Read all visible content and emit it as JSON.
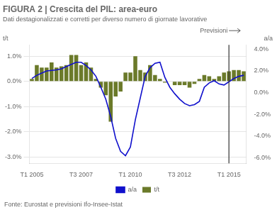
{
  "chart_data": {
    "type": "bar",
    "title": "FIGURA 2 | Crescita del PIL: area-euro",
    "subtitle": "Dati destagionalizzati e corretti per diverso numero di giornate lavorative",
    "source": "Fonte: Eurostat e previsioni Ifo-Insee-Istat",
    "y_label": "t/t",
    "y2_label": "a/a",
    "categories": [
      "T1 2005",
      null,
      null,
      null,
      null,
      null,
      null,
      null,
      null,
      null,
      "T3 2007",
      null,
      null,
      null,
      null,
      null,
      null,
      null,
      null,
      null,
      "T1 2010",
      null,
      null,
      null,
      null,
      null,
      null,
      null,
      null,
      null,
      "T3 2012",
      null,
      null,
      null,
      null,
      null,
      null,
      null,
      null,
      null,
      "T1 2015",
      null,
      null,
      null
    ],
    "series": [
      {
        "name": "t/t",
        "type": "bar",
        "color": "#6b7a2a",
        "values": [
          0.1,
          0.65,
          0.55,
          0.55,
          0.75,
          0.55,
          0.6,
          0.65,
          1.05,
          1.05,
          0.65,
          0.75,
          0.55,
          0.1,
          -0.25,
          -0.55,
          -1.6,
          -0.6,
          -0.4,
          0.35,
          0.35,
          1.0,
          0.45,
          0.35,
          0.65,
          0.25,
          0.1,
          -0.05,
          0.0,
          -0.15,
          -0.15,
          -0.15,
          -0.25,
          -0.1,
          0.1,
          0.25,
          0.2,
          0.1,
          0.2,
          0.35,
          0.4,
          0.45,
          0.45,
          0.4
        ]
      },
      {
        "name": "a/a",
        "type": "line",
        "axis": "y2",
        "color": "#1010cc",
        "values": [
          1.3,
          1.6,
          1.8,
          2.0,
          2.05,
          2.1,
          2.2,
          2.4,
          2.6,
          2.8,
          2.8,
          2.5,
          2.1,
          1.5,
          0.5,
          -0.6,
          -2.2,
          -4.2,
          -5.4,
          -5.8,
          -5.0,
          -2.5,
          -0.5,
          1.5,
          2.3,
          2.7,
          2.8,
          1.4,
          0.5,
          -0.1,
          -0.6,
          -1.0,
          -1.2,
          -1.1,
          -0.8,
          0.5,
          0.9,
          1.1,
          0.8,
          0.7,
          1.0,
          1.3,
          1.5,
          1.6
        ]
      }
    ],
    "ylim": [
      -3.25,
      1.45
    ],
    "yticks": [
      {
        "value": -3.0,
        "label": "-3.0%"
      },
      {
        "value": -2.0,
        "label": "-2.0%"
      },
      {
        "value": -1.0,
        "label": "-1.0%"
      },
      {
        "value": 0.0,
        "label": "0.0%"
      },
      {
        "value": 1.0,
        "label": "1.0%"
      }
    ],
    "y2lim": [
      -6.5,
      4.4
    ],
    "y2ticks": [
      {
        "value": -6.0,
        "label": "-6.0%"
      },
      {
        "value": -4.0,
        "label": "-4.0%"
      },
      {
        "value": -2.0,
        "label": "-2.0%"
      },
      {
        "value": 0.0,
        "label": "0.0%"
      },
      {
        "value": 2.0,
        "label": "2.0%"
      },
      {
        "value": 4.0,
        "label": "4.0%"
      }
    ],
    "grid": true,
    "legend": "bottom",
    "annotations": [
      {
        "text": "Previsioni",
        "x": "T1 2015"
      }
    ]
  }
}
